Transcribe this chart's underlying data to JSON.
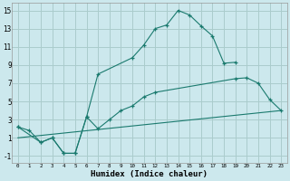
{
  "xlabel": "Humidex (Indice chaleur)",
  "background_color": "#cce8ed",
  "grid_color": "#aacccc",
  "line_color": "#1a7a6e",
  "xlim": [
    -0.5,
    23.5
  ],
  "ylim": [
    -1.8,
    15.8
  ],
  "xticks": [
    0,
    1,
    2,
    3,
    4,
    5,
    6,
    7,
    8,
    9,
    10,
    11,
    12,
    13,
    14,
    15,
    16,
    17,
    18,
    19,
    20,
    21,
    22,
    23
  ],
  "yticks": [
    -1,
    1,
    3,
    5,
    7,
    9,
    11,
    13,
    15
  ],
  "line1_x": [
    0,
    1,
    2,
    3,
    4,
    5,
    6,
    7,
    10,
    11,
    12,
    13,
    14,
    15,
    16,
    17,
    18,
    19
  ],
  "line1_y": [
    2.2,
    1.8,
    0.5,
    1.0,
    -0.7,
    -0.7,
    3.3,
    8.0,
    9.8,
    11.2,
    13.0,
    13.4,
    15.0,
    14.5,
    13.3,
    12.2,
    9.2,
    9.3
  ],
  "line2_x": [
    0,
    2,
    3,
    4,
    5,
    6,
    7,
    8,
    9,
    10,
    11,
    12,
    19,
    20,
    21,
    22,
    23
  ],
  "line2_y": [
    2.2,
    0.5,
    1.0,
    -0.7,
    -0.7,
    3.3,
    2.0,
    3.0,
    4.0,
    4.5,
    5.5,
    6.0,
    7.5,
    7.6,
    7.0,
    5.2,
    4.0
  ],
  "line3_x": [
    0,
    23
  ],
  "line3_y": [
    1.0,
    4.0
  ]
}
